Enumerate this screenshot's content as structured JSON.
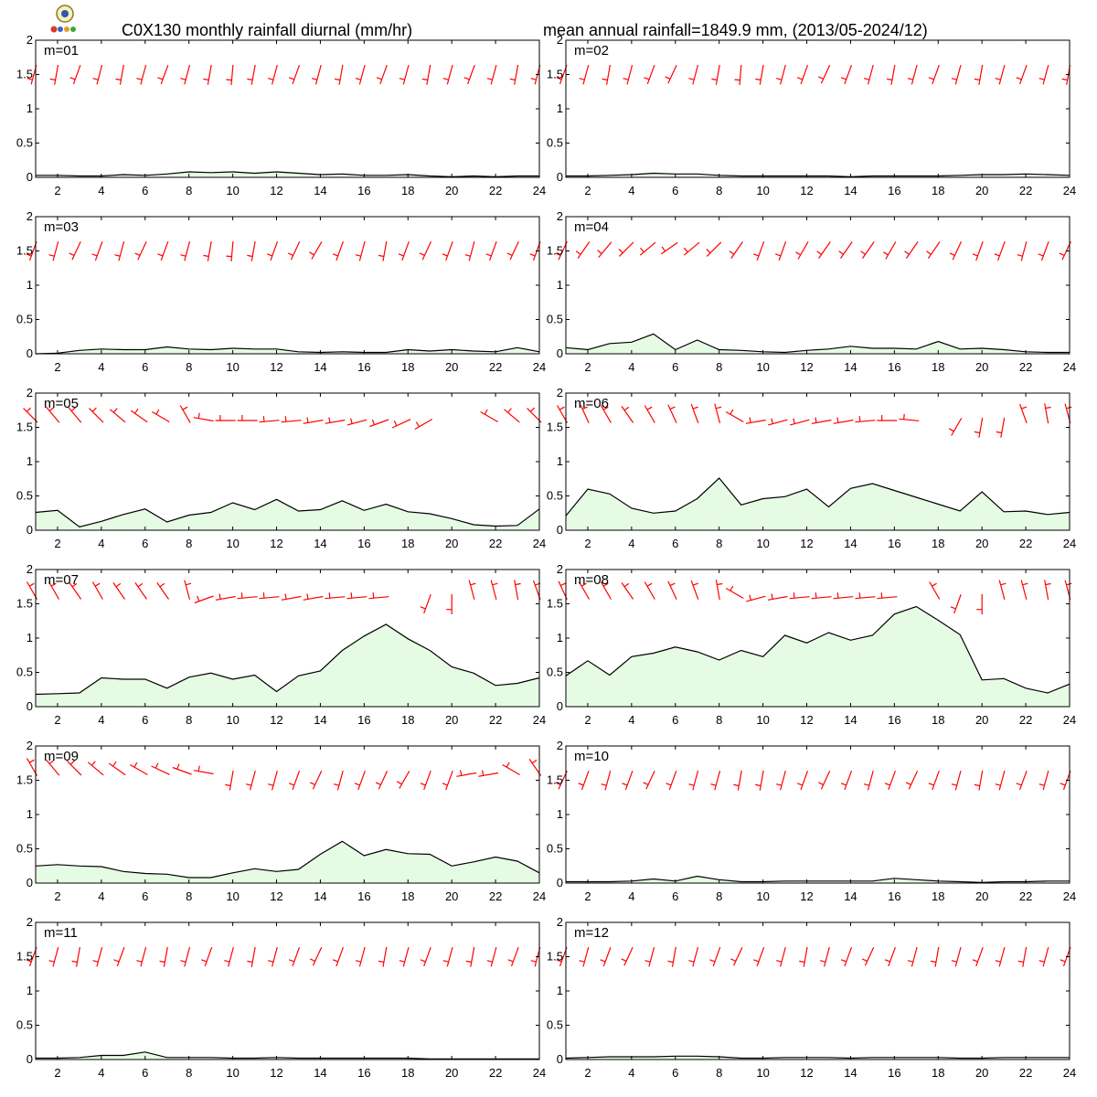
{
  "header": {
    "title_left": "C0X130 monthly rainfall diurnal (mm/hr)",
    "title_right": "mean annual rainfall=1849.9 mm, (2013/05-2024/12)"
  },
  "logo": {
    "icon": "lab-logo-icon"
  },
  "colors": {
    "fill": "#e6fbe3",
    "line": "#000000",
    "barb": "#ff0000",
    "frame": "#000000"
  },
  "chart_data": {
    "type": "area",
    "x": [
      1,
      2,
      3,
      4,
      5,
      6,
      7,
      8,
      9,
      10,
      11,
      12,
      13,
      14,
      15,
      16,
      17,
      18,
      19,
      20,
      21,
      22,
      23,
      24
    ],
    "x_ticks": [
      2,
      4,
      6,
      8,
      10,
      12,
      14,
      16,
      18,
      20,
      22,
      24
    ],
    "y_ticks": [
      0,
      0.5,
      1,
      1.5,
      2
    ],
    "y_tick_labels": [
      "0",
      "0.5",
      "1",
      "1.5",
      "2"
    ],
    "xlim": [
      1,
      24
    ],
    "ylim": [
      0,
      2
    ],
    "overlay": "red wind barbs per hour along the top of each panel",
    "panels": [
      {
        "label": "m=01",
        "rain": [
          0.03,
          0.03,
          0.02,
          0.02,
          0.04,
          0.03,
          0.05,
          0.08,
          0.07,
          0.08,
          0.06,
          0.08,
          0.06,
          0.04,
          0.05,
          0.03,
          0.03,
          0.04,
          0.02,
          0.01,
          0.02,
          0.01,
          0.02,
          0.02
        ],
        "wind_dir": [
          195,
          190,
          200,
          195,
          190,
          195,
          200,
          195,
          190,
          185,
          190,
          195,
          200,
          195,
          190,
          195,
          200,
          195,
          190,
          195,
          200,
          195,
          190,
          195
        ]
      },
      {
        "label": "m=02",
        "rain": [
          0.02,
          0.02,
          0.03,
          0.04,
          0.06,
          0.05,
          0.05,
          0.03,
          0.02,
          0.02,
          0.02,
          0.02,
          0.02,
          0.01,
          0.02,
          0.02,
          0.02,
          0.02,
          0.03,
          0.04,
          0.04,
          0.05,
          0.04,
          0.03
        ],
        "wind_dir": [
          200,
          195,
          190,
          195,
          200,
          205,
          195,
          190,
          185,
          190,
          195,
          200,
          205,
          200,
          195,
          190,
          195,
          200,
          195,
          190,
          195,
          200,
          195,
          190
        ]
      },
      {
        "label": "m=03",
        "rain": [
          0.0,
          0.01,
          0.05,
          0.07,
          0.06,
          0.06,
          0.1,
          0.07,
          0.06,
          0.08,
          0.07,
          0.07,
          0.03,
          0.02,
          0.03,
          0.02,
          0.02,
          0.06,
          0.04,
          0.06,
          0.04,
          0.03,
          0.09,
          0.03
        ],
        "wind_dir": [
          200,
          195,
          205,
          200,
          195,
          205,
          200,
          195,
          190,
          185,
          190,
          200,
          205,
          210,
          200,
          195,
          190,
          200,
          205,
          200,
          195,
          200,
          205,
          200
        ]
      },
      {
        "label": "m=04",
        "rain": [
          0.09,
          0.06,
          0.15,
          0.17,
          0.29,
          0.06,
          0.2,
          0.06,
          0.05,
          0.03,
          0.02,
          0.05,
          0.07,
          0.11,
          0.08,
          0.08,
          0.07,
          0.18,
          0.07,
          0.08,
          0.06,
          0.03,
          0.02,
          0.02
        ],
        "wind_dir": [
          205,
          215,
          220,
          225,
          230,
          235,
          230,
          225,
          215,
          200,
          200,
          210,
          215,
          215,
          215,
          210,
          215,
          215,
          205,
          200,
          200,
          195,
          200,
          205
        ]
      },
      {
        "label": "m=05",
        "rain": [
          0.26,
          0.29,
          0.05,
          0.13,
          0.23,
          0.31,
          0.12,
          0.22,
          0.26,
          0.4,
          0.3,
          0.45,
          0.28,
          0.3,
          0.43,
          0.29,
          0.38,
          0.27,
          0.24,
          0.17,
          0.08,
          0.06,
          0.07,
          0.31
        ],
        "wind_dir": [
          315,
          320,
          320,
          315,
          310,
          305,
          300,
          330,
          280,
          270,
          270,
          265,
          265,
          260,
          260,
          255,
          250,
          245,
          240,
          null,
          null,
          300,
          310,
          315
        ]
      },
      {
        "label": "m=06",
        "rain": [
          0.21,
          0.6,
          0.53,
          0.32,
          0.25,
          0.28,
          0.46,
          0.76,
          0.37,
          0.46,
          0.49,
          0.6,
          0.34,
          0.61,
          0.68,
          0.58,
          0.48,
          0.38,
          0.28,
          0.56,
          0.27,
          0.28,
          0.23,
          0.26
        ],
        "wind_dir": [
          330,
          335,
          330,
          325,
          330,
          335,
          340,
          345,
          300,
          260,
          255,
          255,
          260,
          260,
          265,
          270,
          275,
          null,
          210,
          190,
          190,
          340,
          350,
          345
        ]
      },
      {
        "label": "m=07",
        "rain": [
          0.18,
          0.19,
          0.2,
          0.42,
          0.4,
          0.4,
          0.27,
          0.43,
          0.49,
          0.4,
          0.46,
          0.22,
          0.45,
          0.52,
          0.82,
          1.03,
          1.2,
          0.99,
          0.82,
          0.58,
          0.49,
          0.31,
          0.34,
          0.42
        ],
        "wind_dir": [
          330,
          330,
          325,
          330,
          325,
          325,
          325,
          345,
          250,
          260,
          265,
          265,
          260,
          260,
          265,
          265,
          265,
          null,
          200,
          180,
          345,
          345,
          350,
          340
        ]
      },
      {
        "label": "m=08",
        "rain": [
          0.45,
          0.67,
          0.46,
          0.73,
          0.78,
          0.87,
          0.8,
          0.68,
          0.82,
          0.73,
          1.04,
          0.93,
          1.08,
          0.97,
          1.04,
          1.35,
          1.46,
          1.26,
          1.05,
          0.39,
          0.41,
          0.27,
          0.2,
          0.33
        ],
        "wind_dir": [
          335,
          330,
          330,
          325,
          330,
          335,
          340,
          350,
          300,
          255,
          260,
          265,
          265,
          265,
          265,
          265,
          null,
          330,
          200,
          180,
          345,
          345,
          350,
          345
        ]
      },
      {
        "label": "m=09",
        "rain": [
          0.25,
          0.27,
          0.25,
          0.24,
          0.17,
          0.14,
          0.13,
          0.08,
          0.08,
          0.15,
          0.21,
          0.17,
          0.2,
          0.42,
          0.61,
          0.4,
          0.49,
          0.43,
          0.42,
          0.25,
          0.31,
          0.38,
          0.32,
          0.15
        ],
        "wind_dir": [
          330,
          320,
          315,
          310,
          305,
          300,
          295,
          290,
          280,
          190,
          195,
          195,
          200,
          205,
          195,
          200,
          205,
          210,
          200,
          200,
          260,
          260,
          300,
          325
        ]
      },
      {
        "label": "m=10",
        "rain": [
          0.02,
          0.02,
          0.02,
          0.03,
          0.06,
          0.03,
          0.1,
          0.05,
          0.02,
          0.02,
          0.03,
          0.03,
          0.03,
          0.03,
          0.03,
          0.07,
          0.05,
          0.03,
          0.02,
          0.01,
          0.02,
          0.02,
          0.03,
          0.03
        ],
        "wind_dir": [
          205,
          200,
          195,
          200,
          205,
          200,
          195,
          195,
          190,
          190,
          195,
          200,
          205,
          200,
          195,
          200,
          205,
          200,
          195,
          190,
          195,
          200,
          195,
          200
        ]
      },
      {
        "label": "m=11",
        "rain": [
          0.02,
          0.02,
          0.03,
          0.06,
          0.06,
          0.11,
          0.03,
          0.03,
          0.03,
          0.02,
          0.02,
          0.03,
          0.02,
          0.02,
          0.02,
          0.02,
          0.02,
          0.02,
          0.01,
          0.01,
          0.01,
          0.01,
          0.01,
          0.01
        ],
        "wind_dir": [
          200,
          195,
          190,
          195,
          200,
          195,
          190,
          195,
          200,
          195,
          190,
          195,
          200,
          205,
          200,
          195,
          190,
          195,
          200,
          195,
          190,
          195,
          200,
          195
        ]
      },
      {
        "label": "m=12",
        "rain": [
          0.02,
          0.03,
          0.04,
          0.04,
          0.04,
          0.05,
          0.05,
          0.04,
          0.02,
          0.02,
          0.03,
          0.03,
          0.03,
          0.02,
          0.03,
          0.03,
          0.03,
          0.03,
          0.02,
          0.02,
          0.03,
          0.03,
          0.03,
          0.03
        ],
        "wind_dir": [
          200,
          195,
          200,
          205,
          195,
          190,
          195,
          200,
          205,
          200,
          195,
          190,
          195,
          200,
          205,
          200,
          195,
          190,
          195,
          200,
          195,
          190,
          195,
          200
        ]
      }
    ]
  }
}
